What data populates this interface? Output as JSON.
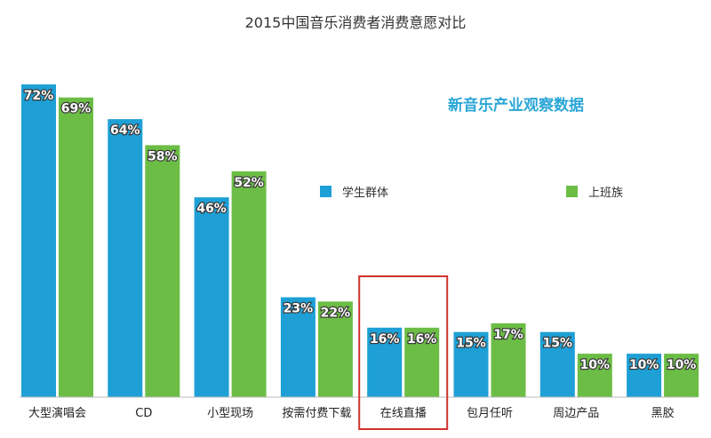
{
  "chart_data": {
    "type": "bar",
    "title": "2015中国音乐消费者消费意愿对比",
    "categories": [
      "大型演唱会",
      "CD",
      "小型现场",
      "按需付费下载",
      "在线直播",
      "包月任听",
      "周边产品",
      "黑胶"
    ],
    "series": [
      {
        "name": "学生群体",
        "color": "#1ea0d6",
        "values": [
          72,
          64,
          46,
          23,
          16,
          15,
          15,
          10
        ]
      },
      {
        "name": "上班族",
        "color": "#6cbd45",
        "values": [
          69,
          58,
          52,
          22,
          16,
          17,
          10,
          10
        ]
      }
    ],
    "data_label_suffix": "%",
    "ylim": [
      0,
      72
    ],
    "grid": false,
    "legend_position": "right",
    "highlighted_category": "在线直播"
  },
  "watermark": "新音乐产业观察数据",
  "colors": {
    "student": "#1ea0d6",
    "worker": "#6cbd45",
    "highlight_box": "#d0312d",
    "axis": "#bbbbbb",
    "watermark": "#2aa6d6"
  }
}
